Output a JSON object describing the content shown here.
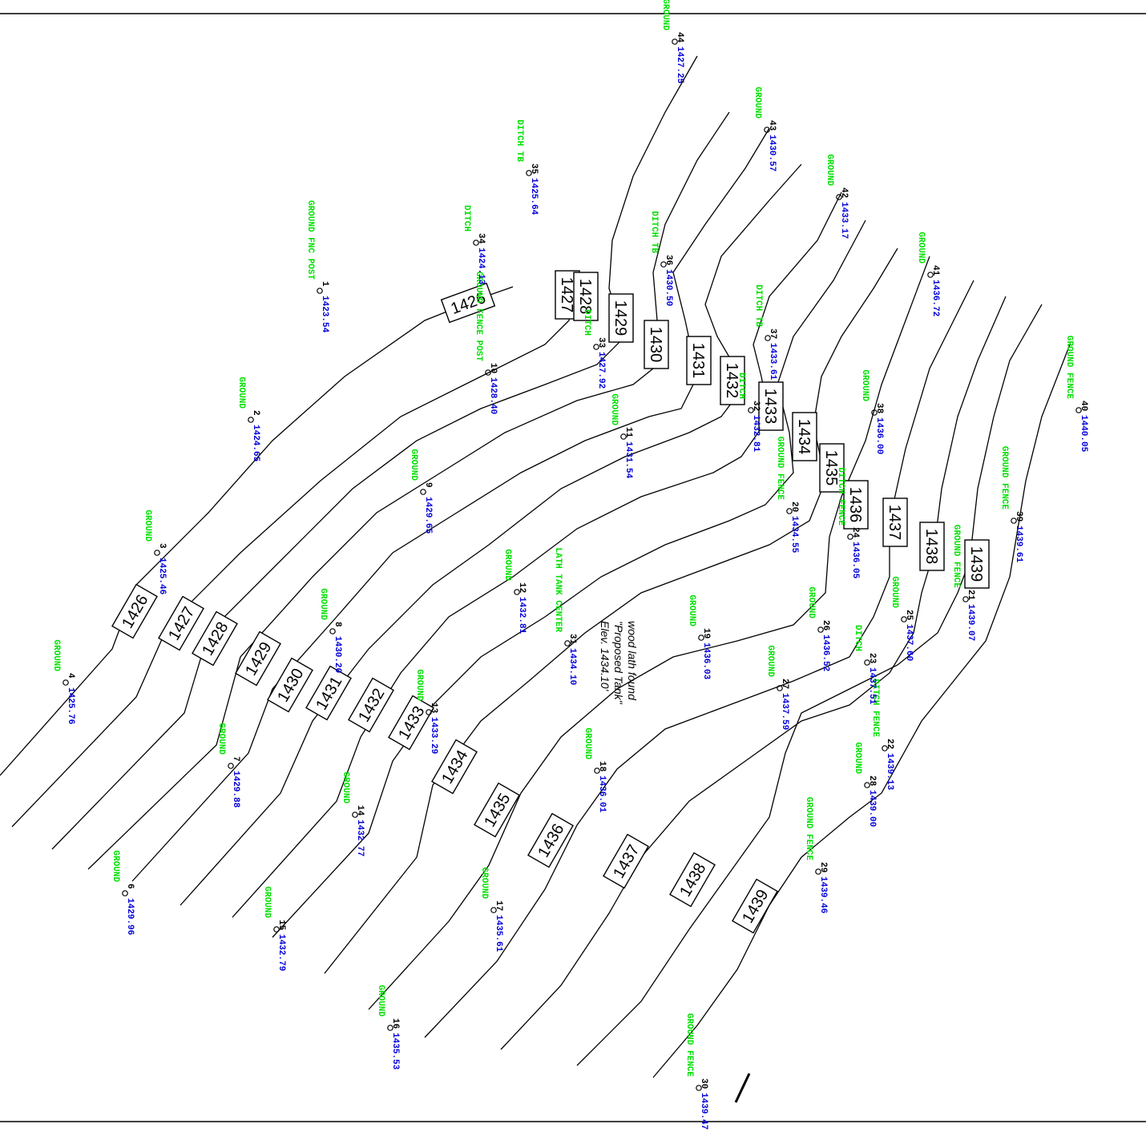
{
  "contours": [
    {
      "elev": "1426"
    },
    {
      "elev": "1427"
    },
    {
      "elev": "1428"
    },
    {
      "elev": "1429"
    },
    {
      "elev": "1430"
    },
    {
      "elev": "1431"
    },
    {
      "elev": "1432"
    },
    {
      "elev": "1433"
    },
    {
      "elev": "1434"
    },
    {
      "elev": "1435"
    },
    {
      "elev": "1436"
    },
    {
      "elev": "1437"
    },
    {
      "elev": "1438"
    },
    {
      "elev": "1439"
    }
  ],
  "contour_labels": [
    "1426",
    "1427",
    "1428",
    "1429",
    "1430",
    "1431",
    "1432",
    "1433",
    "1434",
    "1435",
    "1436",
    "1437",
    "1438",
    "1439",
    "1426",
    "1427",
    "1428",
    "1429",
    "1430",
    "1431",
    "1432",
    "1433",
    "1434",
    "1435",
    "1436",
    "1437",
    "1438",
    "1439"
  ],
  "points": [
    {
      "num": "1",
      "desc": "GROUND FNC POST",
      "elev": "1423.54"
    },
    {
      "num": "2",
      "desc": "GROUND",
      "elev": "1424.65"
    },
    {
      "num": "3",
      "desc": "GROUND",
      "elev": "1425.46"
    },
    {
      "num": "4",
      "desc": "GROUND",
      "elev": "1425.76"
    },
    {
      "num": "6",
      "desc": "GROUND",
      "elev": "1429.96"
    },
    {
      "num": "7",
      "desc": "GROUND",
      "elev": "1429.88"
    },
    {
      "num": "8",
      "desc": "GROUND",
      "elev": "1430.20"
    },
    {
      "num": "9",
      "desc": "GROUND",
      "elev": "1429.65"
    },
    {
      "num": "10",
      "desc": "GROUND FENCE POST",
      "elev": "1428.40"
    },
    {
      "num": "11",
      "desc": "GROUND",
      "elev": "1431.54"
    },
    {
      "num": "12",
      "desc": "GROUND",
      "elev": "1432.81"
    },
    {
      "num": "13",
      "desc": "GROUND",
      "elev": "1433.29"
    },
    {
      "num": "14",
      "desc": "GROUND",
      "elev": "1432.77"
    },
    {
      "num": "15",
      "desc": "GROUND",
      "elev": "1432.79"
    },
    {
      "num": "16",
      "desc": "GROUND",
      "elev": "1435.53"
    },
    {
      "num": "17",
      "desc": "GROUND",
      "elev": "1435.61"
    },
    {
      "num": "18",
      "desc": "GROUND",
      "elev": "1436.01"
    },
    {
      "num": "19",
      "desc": "GROUND",
      "elev": "1436.03"
    },
    {
      "num": "20",
      "desc": "GROUND FENCE",
      "elev": "1434.55"
    },
    {
      "num": "21",
      "desc": "GROUND FENCE",
      "elev": "1439.07"
    },
    {
      "num": "22",
      "desc": "DITCH FENCE",
      "elev": "1439.13"
    },
    {
      "num": "23",
      "desc": "DITCH",
      "elev": "1437.51"
    },
    {
      "num": "24",
      "desc": "DITCH FENCE",
      "elev": "1436.05"
    },
    {
      "num": "25",
      "desc": "GROUND",
      "elev": "1437.60"
    },
    {
      "num": "26",
      "desc": "GROUND",
      "elev": "1436.52"
    },
    {
      "num": "27",
      "desc": "GROUND",
      "elev": "1437.59"
    },
    {
      "num": "28",
      "desc": "GROUND",
      "elev": "1439.00"
    },
    {
      "num": "29",
      "desc": "GROUND FENCE",
      "elev": "1439.46"
    },
    {
      "num": "30",
      "desc": "GROUND FENCE",
      "elev": "1439.47"
    },
    {
      "num": "31",
      "desc": "LATH TANK CENTER",
      "elev": "1434.10"
    },
    {
      "num": "32",
      "desc": "DITCH",
      "elev": "1432.81"
    },
    {
      "num": "33",
      "desc": "DITCH",
      "elev": "1427.92"
    },
    {
      "num": "34",
      "desc": "DITCH",
      "elev": "1424.13"
    },
    {
      "num": "35",
      "desc": "DITCH TB",
      "elev": "1425.64"
    },
    {
      "num": "36",
      "desc": "DITCH TB",
      "elev": "1430.50"
    },
    {
      "num": "37",
      "desc": "DITCH TB",
      "elev": "1433.61"
    },
    {
      "num": "38",
      "desc": "GROUND",
      "elev": "1436.00"
    },
    {
      "num": "39",
      "desc": "GROUND FENCE",
      "elev": "1439.61"
    },
    {
      "num": "40",
      "desc": "GROUND FENCE",
      "elev": "1440.05"
    },
    {
      "num": "41",
      "desc": "GROUND",
      "elev": "1436.72"
    },
    {
      "num": "42",
      "desc": "GROUND",
      "elev": "1433.17"
    },
    {
      "num": "43",
      "desc": "GROUND",
      "elev": "1430.57"
    },
    {
      "num": "44",
      "desc": "GROUND",
      "elev": "1427.25"
    }
  ],
  "note": {
    "line1": "wood lath found",
    "line2": "\"Proposed Tank\"",
    "line3": "Elev. 1434.10'"
  }
}
